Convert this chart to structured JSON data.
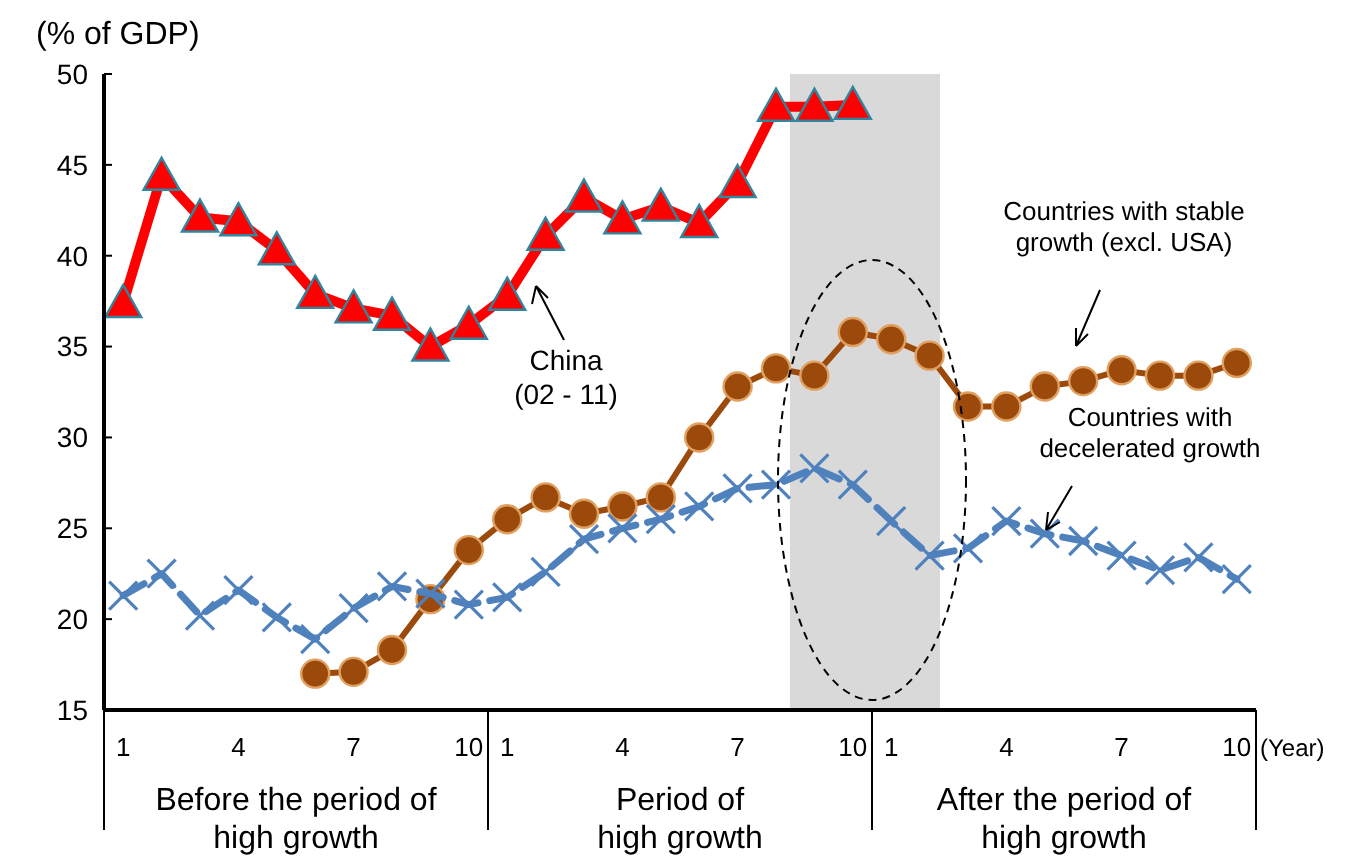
{
  "chart_data": {
    "type": "line",
    "ylabel": "(% of GDP)",
    "xlabel": "(Year)",
    "categories": [
      "1",
      null,
      null,
      "4",
      null,
      null,
      "7",
      null,
      null,
      "10",
      "1",
      null,
      null,
      "4",
      null,
      null,
      "7",
      null,
      null,
      "10",
      "1",
      null,
      null,
      "4",
      null,
      null,
      "7",
      null,
      null,
      "10"
    ],
    "ylim": [
      15,
      50
    ],
    "yticks": [
      15,
      20,
      25,
      30,
      35,
      40,
      45,
      50
    ],
    "grid": false,
    "series": [
      {
        "color": "#ff0000",
        "marker": "triangle",
        "line_style": "solid",
        "values": [
          37.4,
          44.4,
          42.1,
          41.9,
          40.3,
          37.9,
          37.1,
          36.7,
          35.0,
          36.2,
          37.8,
          41.1,
          43.2,
          42.0,
          42.7,
          41.8,
          44.0,
          48.2,
          48.2,
          48.3,
          null,
          null,
          null,
          null,
          null,
          null,
          null,
          null,
          null,
          null
        ]
      },
      {
        "color": "#9c4a0c",
        "marker": "circle",
        "line_style": "solid",
        "values": [
          null,
          null,
          null,
          null,
          null,
          17.0,
          17.1,
          18.3,
          21.1,
          23.8,
          25.5,
          26.7,
          25.8,
          26.2,
          26.7,
          30.0,
          32.8,
          33.8,
          33.4,
          35.8,
          35.4,
          34.5,
          31.7,
          31.7,
          32.8,
          33.1,
          33.7,
          33.4,
          33.4,
          34.1
        ]
      },
      {
        "color": "#4f81bd",
        "marker": "cross",
        "line_style": "dashed",
        "values": [
          21.3,
          22.5,
          20.2,
          21.6,
          20.1,
          18.9,
          20.6,
          21.8,
          21.4,
          20.8,
          21.2,
          22.6,
          24.4,
          25.0,
          25.5,
          26.2,
          27.2,
          27.4,
          28.3,
          27.4,
          25.4,
          23.5,
          23.9,
          25.4,
          24.7,
          24.3,
          23.5,
          22.7,
          23.4,
          22.2
        ]
      }
    ],
    "annotations": [
      "China\n(02 - 11)",
      "Countries with stable\ngrowth (excl. USA)",
      "Countries with\ndecelerated growth",
      "Before the period of\nhigh growth",
      "Period of\nhigh growth",
      "After the period of\nhigh growth"
    ]
  }
}
